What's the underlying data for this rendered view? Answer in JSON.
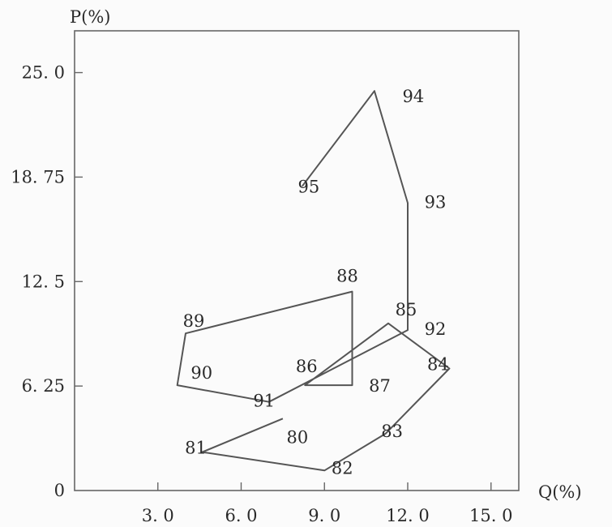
{
  "chart_data": {
    "type": "scatter",
    "xlabel": "Q(%)",
    "ylabel": "P(%)",
    "xlim": [
      3.0,
      15.0
    ],
    "ylim": [
      0,
      25.0
    ],
    "x_ticks": [
      {
        "value": 3.0,
        "label": "3. 0"
      },
      {
        "value": 6.0,
        "label": "6. 0"
      },
      {
        "value": 9.0,
        "label": "9. 0"
      },
      {
        "value": 12.0,
        "label": "12. 0"
      },
      {
        "value": 15.0,
        "label": "15. 0"
      }
    ],
    "y_ticks": [
      {
        "value": 0,
        "label": "0"
      },
      {
        "value": 6.25,
        "label": "6. 25"
      },
      {
        "value": 12.5,
        "label": "12. 5"
      },
      {
        "value": 18.75,
        "label": "18. 75"
      },
      {
        "value": 25.0,
        "label": "25. 0"
      }
    ],
    "grid": false,
    "connected": true,
    "points": [
      {
        "label": "80",
        "x": 7.5,
        "y": 4.3
      },
      {
        "label": "81",
        "x": 4.6,
        "y": 2.3
      },
      {
        "label": "82",
        "x": 9.0,
        "y": 1.2
      },
      {
        "label": "83",
        "x": 11.2,
        "y": 3.4
      },
      {
        "label": "84",
        "x": 13.5,
        "y": 7.3
      },
      {
        "label": "85",
        "x": 11.3,
        "y": 10.0
      },
      {
        "label": "86",
        "x": 8.3,
        "y": 6.3
      },
      {
        "label": "87",
        "x": 10.0,
        "y": 6.3
      },
      {
        "label": "88",
        "x": 10.0,
        "y": 11.9
      },
      {
        "label": "89",
        "x": 4.0,
        "y": 9.4
      },
      {
        "label": "90",
        "x": 3.7,
        "y": 6.3
      },
      {
        "label": "91",
        "x": 7.0,
        "y": 5.3
      },
      {
        "label": "92",
        "x": 12.0,
        "y": 9.6
      },
      {
        "label": "93",
        "x": 12.0,
        "y": 17.2
      },
      {
        "label": "94",
        "x": 10.8,
        "y": 23.9
      },
      {
        "label": "95",
        "x": 8.2,
        "y": 18.2
      }
    ]
  }
}
